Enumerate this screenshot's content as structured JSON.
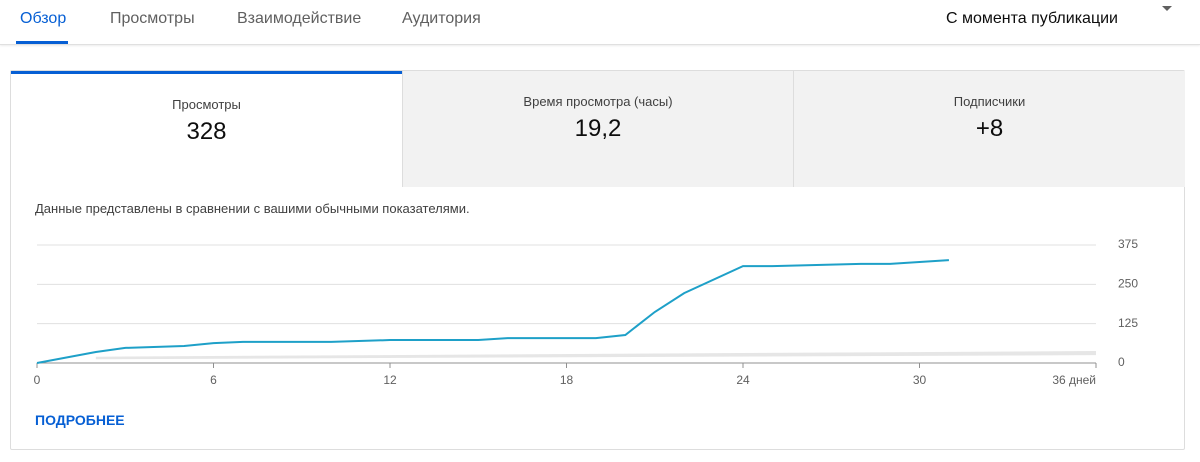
{
  "tabs": [
    "Обзор",
    "Просмотры",
    "Взаимодействие",
    "Аудитория"
  ],
  "period": "С момента публикации",
  "metrics": [
    {
      "label": "Просмотры",
      "value": "328"
    },
    {
      "label": "Время просмотра (часы)",
      "value": "19,2"
    },
    {
      "label": "Подписчики",
      "value": "+8"
    }
  ],
  "note": "Данные представлены в сравнении с вашими обычными показателями.",
  "link": "ПОДРОБНЕЕ",
  "chart_data": {
    "type": "line",
    "x": [
      0,
      2,
      3,
      5,
      6,
      7,
      10,
      12,
      15,
      16,
      19,
      20,
      21,
      22,
      24,
      25,
      28,
      29,
      30,
      31
    ],
    "series": [
      {
        "color": "#1ea0c8",
        "values": [
          0,
          35,
          48,
          54,
          63,
          67,
          67,
          73,
          73,
          79,
          79,
          89,
          162,
          222,
          308,
          308,
          315,
          315,
          321,
          327
        ]
      }
    ],
    "band_x": [
      2,
      36
    ],
    "band_low": [
      12,
      25
    ],
    "band_high": [
      20,
      38
    ],
    "band_color": "#e6e6e6",
    "xlim": [
      0,
      36
    ],
    "xticks": [
      0,
      6,
      12,
      18,
      24,
      30,
      {
        "value": 36,
        "label": "36 дней"
      }
    ],
    "ylim": [
      0,
      375
    ],
    "yticks": [
      0,
      125,
      250,
      375
    ],
    "grid": true
  }
}
